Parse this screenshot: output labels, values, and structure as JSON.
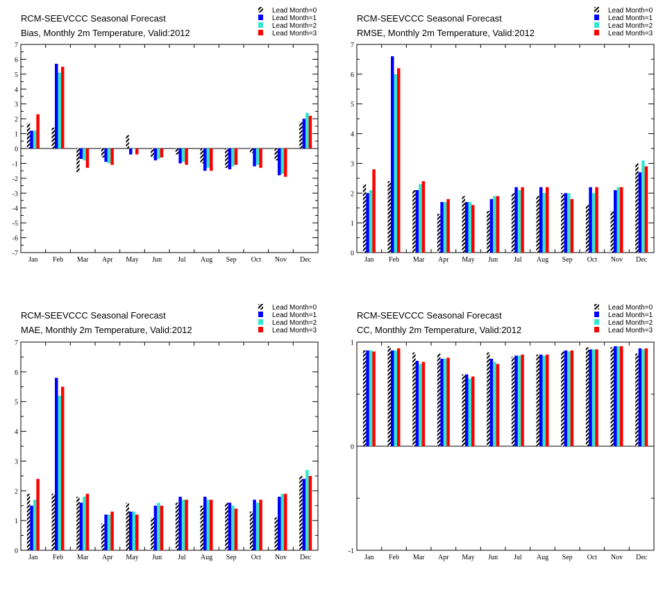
{
  "chart_data": [
    {
      "type": "bar",
      "title": "RCM-SEEVCCC Seasonal Forecast",
      "subtitle": "Bias, Monthly 2m Temperature, Valid:2012",
      "categories": [
        "Jan",
        "Feb",
        "Mar",
        "Apr",
        "May",
        "Jun",
        "Jul",
        "Aug",
        "Sep",
        "Oct",
        "Nov",
        "Dec"
      ],
      "ylim": [
        -7,
        7
      ],
      "yticks": [
        -7,
        -6,
        -5,
        -4,
        -3,
        -2,
        -1,
        0,
        1,
        2,
        3,
        4,
        5,
        6,
        7
      ],
      "ytick_labels": [
        "-7",
        "-6",
        "-5",
        "-4",
        "-3",
        "-2",
        "-1",
        "0",
        "1",
        "2",
        "3",
        "4",
        "5",
        "6",
        "7"
      ],
      "series": [
        {
          "name": "Lead Month=0",
          "values": [
            1.7,
            1.4,
            -1.6,
            -0.6,
            0.9,
            -0.6,
            -0.4,
            -1.0,
            -1.3,
            -0.3,
            -0.8,
            1.8
          ]
        },
        {
          "name": "Lead Month=1",
          "values": [
            1.2,
            5.7,
            -0.7,
            -0.9,
            -0.4,
            -0.8,
            -1.0,
            -1.5,
            -1.4,
            -1.2,
            -1.8,
            2.0
          ]
        },
        {
          "name": "Lead Month=2",
          "values": [
            1.2,
            5.1,
            -0.8,
            -1.0,
            0.0,
            -0.7,
            -0.9,
            -1.3,
            -1.2,
            -1.1,
            -1.7,
            2.4
          ]
        },
        {
          "name": "Lead Month=3",
          "values": [
            2.3,
            5.5,
            -1.3,
            -1.1,
            -0.4,
            -0.6,
            -1.1,
            -1.5,
            -1.1,
            -1.3,
            -1.9,
            2.2
          ]
        }
      ]
    },
    {
      "type": "bar",
      "title": "RCM-SEEVCCC Seasonal Forecast",
      "subtitle": "RMSE, Monthly 2m Temperature, Valid:2012",
      "categories": [
        "Jan",
        "Feb",
        "Mar",
        "Apr",
        "May",
        "Jun",
        "Jul",
        "Aug",
        "Sep",
        "Oct",
        "Nov",
        "Dec"
      ],
      "ylim": [
        0,
        7
      ],
      "yticks": [
        0,
        1,
        2,
        3,
        4,
        5,
        6,
        7
      ],
      "ytick_labels": [
        "0",
        "1",
        "2",
        "3",
        "4",
        "5",
        "6",
        "7"
      ],
      "series": [
        {
          "name": "Lead Month=0",
          "values": [
            2.3,
            2.4,
            2.1,
            1.3,
            1.9,
            1.4,
            2.0,
            1.9,
            2.0,
            1.6,
            1.4,
            3.0
          ]
        },
        {
          "name": "Lead Month=1",
          "values": [
            2.0,
            6.6,
            2.1,
            1.7,
            1.7,
            1.8,
            2.2,
            2.2,
            2.0,
            2.2,
            2.1,
            2.7
          ]
        },
        {
          "name": "Lead Month=2",
          "values": [
            2.1,
            6.0,
            2.3,
            1.7,
            1.7,
            1.9,
            2.1,
            2.0,
            2.0,
            2.0,
            2.2,
            3.1
          ]
        },
        {
          "name": "Lead Month=3",
          "values": [
            2.8,
            6.2,
            2.4,
            1.8,
            1.6,
            1.9,
            2.2,
            2.2,
            1.8,
            2.2,
            2.2,
            2.9
          ]
        }
      ]
    },
    {
      "type": "bar",
      "title": "RCM-SEEVCCC Seasonal Forecast",
      "subtitle": "MAE, Monthly 2m Temperature, Valid:2012",
      "categories": [
        "Jan",
        "Feb",
        "Mar",
        "Apr",
        "May",
        "Jun",
        "Jul",
        "Aug",
        "Sep",
        "Oct",
        "Nov",
        "Dec"
      ],
      "ylim": [
        0,
        7
      ],
      "yticks": [
        0,
        1,
        2,
        3,
        4,
        5,
        6,
        7
      ],
      "ytick_labels": [
        "0",
        "1",
        "2",
        "3",
        "4",
        "5",
        "6",
        "7"
      ],
      "series": [
        {
          "name": "Lead Month=0",
          "values": [
            1.9,
            1.9,
            1.8,
            0.9,
            1.6,
            1.1,
            1.6,
            1.5,
            1.6,
            1.3,
            1.1,
            2.5
          ]
        },
        {
          "name": "Lead Month=1",
          "values": [
            1.5,
            5.8,
            1.6,
            1.2,
            1.3,
            1.5,
            1.8,
            1.8,
            1.6,
            1.7,
            1.8,
            2.4
          ]
        },
        {
          "name": "Lead Month=2",
          "values": [
            1.7,
            5.2,
            1.8,
            1.2,
            1.3,
            1.6,
            1.7,
            1.7,
            1.5,
            1.6,
            1.9,
            2.7
          ]
        },
        {
          "name": "Lead Month=3",
          "values": [
            2.4,
            5.5,
            1.9,
            1.3,
            1.2,
            1.5,
            1.7,
            1.7,
            1.4,
            1.7,
            1.9,
            2.5
          ]
        }
      ]
    },
    {
      "type": "bar",
      "title": "RCM-SEEVCCC Seasonal Forecast",
      "subtitle": "CC, Monthly 2m Temperature, Valid:2012",
      "categories": [
        "Jan",
        "Feb",
        "Mar",
        "Apr",
        "May",
        "Jun",
        "Jul",
        "Aug",
        "Sep",
        "Oct",
        "Nov",
        "Dec"
      ],
      "ylim": [
        -1,
        1
      ],
      "yticks": [
        -1,
        0,
        1
      ],
      "ytick_labels": [
        "-1",
        "0",
        "1"
      ],
      "series": [
        {
          "name": "Lead Month=0",
          "values": [
            0.92,
            0.96,
            0.9,
            0.89,
            0.69,
            0.9,
            0.86,
            0.88,
            0.91,
            0.95,
            0.95,
            0.89
          ]
        },
        {
          "name": "Lead Month=1",
          "values": [
            0.92,
            0.92,
            0.82,
            0.84,
            0.69,
            0.84,
            0.87,
            0.88,
            0.92,
            0.93,
            0.96,
            0.94
          ]
        },
        {
          "name": "Lead Month=2",
          "values": [
            0.92,
            0.92,
            0.79,
            0.84,
            0.65,
            0.81,
            0.87,
            0.87,
            0.91,
            0.93,
            0.96,
            0.93
          ]
        },
        {
          "name": "Lead Month=3",
          "values": [
            0.91,
            0.94,
            0.81,
            0.85,
            0.67,
            0.79,
            0.88,
            0.88,
            0.92,
            0.93,
            0.96,
            0.94
          ]
        }
      ]
    }
  ],
  "colors": {
    "series0_pattern": "#000000",
    "series1": "#0000ff",
    "series2": "#33e6cc",
    "series3": "#ff0000"
  }
}
